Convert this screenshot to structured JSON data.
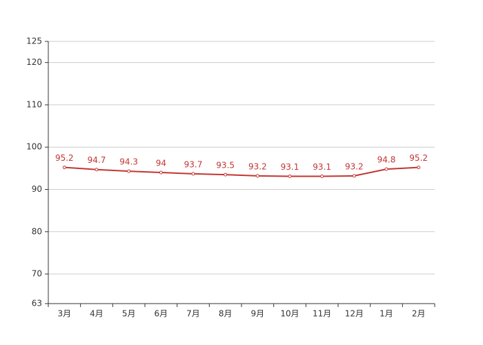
{
  "chart_data": {
    "type": "line",
    "categories": [
      "3月",
      "4月",
      "5月",
      "6月",
      "7月",
      "8月",
      "9月",
      "10月",
      "11月",
      "12月",
      "1月",
      "2月"
    ],
    "values": [
      95.2,
      94.7,
      94.3,
      94,
      93.7,
      93.5,
      93.2,
      93.1,
      93.1,
      93.2,
      94.8,
      95.2
    ],
    "color": "#c23531",
    "ylim": [
      63,
      125
    ],
    "yticks": [
      63,
      70,
      80,
      90,
      100,
      110,
      120,
      125
    ],
    "grid": true
  }
}
